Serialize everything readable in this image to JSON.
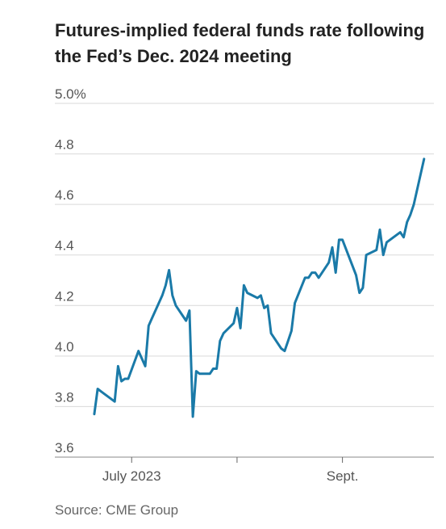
{
  "title": "Futures-implied federal funds rate following the Fed’s Dec. 2024 meeting",
  "source": "Source: CME Group",
  "colors": {
    "line": "#1a7aa8",
    "grid": "#d9d9d9",
    "text": "#555555"
  },
  "chart_data": {
    "type": "line",
    "title": "Futures-implied federal funds rate following the Fed’s Dec. 2024 meeting",
    "xlabel": "",
    "ylabel": "",
    "ylim": [
      3.6,
      5.0
    ],
    "yticks": [
      3.6,
      3.8,
      4.0,
      4.2,
      4.4,
      4.6,
      4.8,
      5.0
    ],
    "ytick_labels": [
      "3.6",
      "3.8",
      "4.0",
      "4.2",
      "4.4",
      "4.6",
      "4.8",
      "5.0%"
    ],
    "xlim": [
      "2023-06-16",
      "2023-09-26"
    ],
    "xticks": [
      {
        "date": "2023-07-01",
        "label": "July 2023"
      },
      {
        "date": "2023-08-01",
        "label": ""
      },
      {
        "date": "2023-09-01",
        "label": "Sept."
      }
    ],
    "grid": true,
    "series": [
      {
        "x": [
          "2023-06-20",
          "2023-06-21",
          "2023-06-22",
          "2023-06-23",
          "2023-06-26",
          "2023-06-27",
          "2023-06-28",
          "2023-06-29",
          "2023-06-30",
          "2023-07-03",
          "2023-07-05",
          "2023-07-06",
          "2023-07-07",
          "2023-07-10",
          "2023-07-11",
          "2023-07-12",
          "2023-07-13",
          "2023-07-14",
          "2023-07-17",
          "2023-07-18",
          "2023-07-19",
          "2023-07-20",
          "2023-07-21",
          "2023-07-24",
          "2023-07-25",
          "2023-07-26",
          "2023-07-27",
          "2023-07-28",
          "2023-07-31",
          "2023-08-01",
          "2023-08-02",
          "2023-08-03",
          "2023-08-04",
          "2023-08-07",
          "2023-08-08",
          "2023-08-09",
          "2023-08-10",
          "2023-08-11",
          "2023-08-14",
          "2023-08-15",
          "2023-08-16",
          "2023-08-17",
          "2023-08-18",
          "2023-08-21",
          "2023-08-22",
          "2023-08-23",
          "2023-08-24",
          "2023-08-25",
          "2023-08-28",
          "2023-08-29",
          "2023-08-30",
          "2023-08-31",
          "2023-09-01",
          "2023-09-05",
          "2023-09-06",
          "2023-09-07",
          "2023-09-08",
          "2023-09-11",
          "2023-09-12",
          "2023-09-13",
          "2023-09-14",
          "2023-09-15",
          "2023-09-18",
          "2023-09-19",
          "2023-09-20",
          "2023-09-21",
          "2023-09-22",
          "2023-09-25"
        ],
        "values": [
          3.77,
          3.87,
          3.86,
          3.85,
          3.82,
          3.96,
          3.9,
          3.91,
          3.91,
          4.02,
          3.96,
          4.12,
          4.15,
          4.24,
          4.28,
          4.34,
          4.24,
          4.2,
          4.14,
          4.18,
          3.76,
          3.94,
          3.93,
          3.93,
          3.95,
          3.95,
          4.06,
          4.09,
          4.13,
          4.19,
          4.11,
          4.28,
          4.25,
          4.23,
          4.24,
          4.19,
          4.2,
          4.09,
          4.03,
          4.02,
          4.06,
          4.1,
          4.21,
          4.31,
          4.31,
          4.33,
          4.33,
          4.31,
          4.37,
          4.43,
          4.33,
          4.46,
          4.46,
          4.32,
          4.25,
          4.27,
          4.4,
          4.42,
          4.5,
          4.4,
          4.45,
          4.46,
          4.49,
          4.47,
          4.53,
          4.56,
          4.6,
          4.78
        ]
      }
    ]
  }
}
